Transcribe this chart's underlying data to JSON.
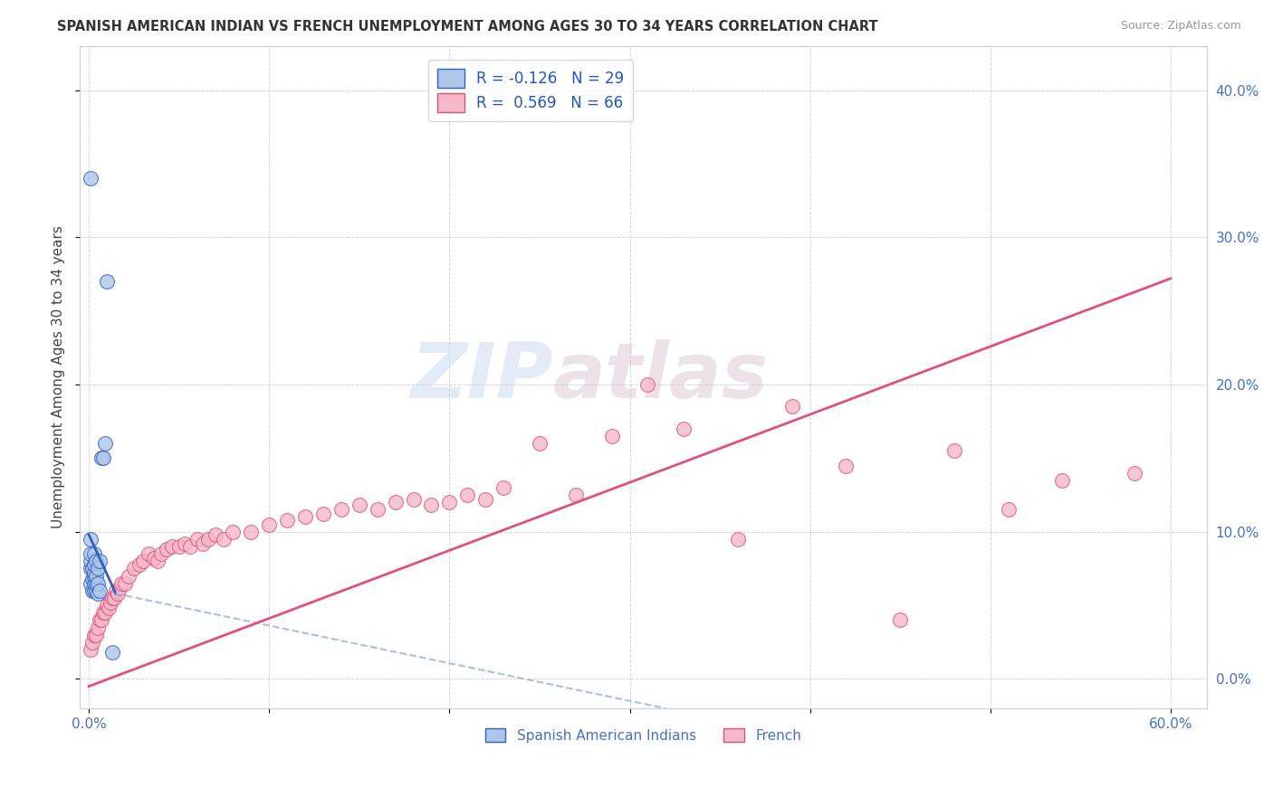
{
  "title": "SPANISH AMERICAN INDIAN VS FRENCH UNEMPLOYMENT AMONG AGES 30 TO 34 YEARS CORRELATION CHART",
  "source": "Source: ZipAtlas.com",
  "ylabel": "Unemployment Among Ages 30 to 34 years",
  "xlim": [
    -0.005,
    0.62
  ],
  "ylim": [
    -0.02,
    0.43
  ],
  "xticks": [
    0.0,
    0.1,
    0.2,
    0.3,
    0.4,
    0.5,
    0.6
  ],
  "xticklabels": [
    "0.0%",
    "",
    "",
    "",
    "",
    "",
    "60.0%"
  ],
  "yticks": [
    0.0,
    0.1,
    0.2,
    0.3,
    0.4
  ],
  "yticklabels_right": [
    "0.0%",
    "10.0%",
    "20.0%",
    "30.0%",
    "40.0%"
  ],
  "legend_r1": "R = -0.126",
  "legend_n1": "N = 29",
  "legend_r2": "R =  0.569",
  "legend_n2": "N = 66",
  "color_blue": "#aec6e8",
  "color_pink": "#f5b8c8",
  "line_blue": "#3060c0",
  "line_pink": "#e0507a",
  "line_dash_color": "#aac0e0",
  "watermark_zip": "ZIP",
  "watermark_atlas": "atlas",
  "blue_x": [
    0.001,
    0.001,
    0.001,
    0.001,
    0.001,
    0.002,
    0.002,
    0.002,
    0.003,
    0.003,
    0.003,
    0.003,
    0.003,
    0.003,
    0.004,
    0.004,
    0.004,
    0.004,
    0.005,
    0.005,
    0.005,
    0.006,
    0.006,
    0.007,
    0.008,
    0.009,
    0.01,
    0.013,
    0.001
  ],
  "blue_y": [
    0.065,
    0.075,
    0.08,
    0.085,
    0.095,
    0.06,
    0.068,
    0.075,
    0.06,
    0.065,
    0.07,
    0.072,
    0.078,
    0.085,
    0.06,
    0.065,
    0.07,
    0.08,
    0.058,
    0.065,
    0.075,
    0.06,
    0.08,
    0.15,
    0.15,
    0.16,
    0.27,
    0.018,
    0.34
  ],
  "pink_x": [
    0.001,
    0.002,
    0.003,
    0.004,
    0.005,
    0.006,
    0.007,
    0.008,
    0.009,
    0.01,
    0.011,
    0.012,
    0.013,
    0.014,
    0.015,
    0.016,
    0.017,
    0.018,
    0.02,
    0.022,
    0.025,
    0.028,
    0.03,
    0.033,
    0.036,
    0.038,
    0.04,
    0.043,
    0.046,
    0.05,
    0.053,
    0.056,
    0.06,
    0.063,
    0.066,
    0.07,
    0.075,
    0.08,
    0.09,
    0.1,
    0.11,
    0.12,
    0.13,
    0.14,
    0.15,
    0.16,
    0.17,
    0.18,
    0.19,
    0.2,
    0.21,
    0.22,
    0.23,
    0.25,
    0.27,
    0.29,
    0.31,
    0.33,
    0.36,
    0.39,
    0.42,
    0.45,
    0.48,
    0.51,
    0.54,
    0.58
  ],
  "pink_y": [
    0.02,
    0.025,
    0.03,
    0.03,
    0.035,
    0.04,
    0.04,
    0.045,
    0.045,
    0.05,
    0.048,
    0.052,
    0.055,
    0.055,
    0.06,
    0.058,
    0.062,
    0.065,
    0.065,
    0.07,
    0.075,
    0.078,
    0.08,
    0.085,
    0.082,
    0.08,
    0.085,
    0.088,
    0.09,
    0.09,
    0.092,
    0.09,
    0.095,
    0.092,
    0.095,
    0.098,
    0.095,
    0.1,
    0.1,
    0.105,
    0.108,
    0.11,
    0.112,
    0.115,
    0.118,
    0.115,
    0.12,
    0.122,
    0.118,
    0.12,
    0.125,
    0.122,
    0.13,
    0.16,
    0.125,
    0.165,
    0.2,
    0.17,
    0.095,
    0.185,
    0.145,
    0.04,
    0.155,
    0.115,
    0.135,
    0.14
  ],
  "blue_trend_x0": 0.0,
  "blue_trend_x1": 0.015,
  "blue_trend_y0": 0.098,
  "blue_trend_y1": 0.058,
  "dash_trend_x0": 0.015,
  "dash_trend_x1": 0.32,
  "dash_trend_y0": 0.058,
  "dash_trend_y1": -0.02,
  "pink_trend_x0": 0.0,
  "pink_trend_x1": 0.6,
  "pink_trend_y0": -0.005,
  "pink_trend_y1": 0.272
}
